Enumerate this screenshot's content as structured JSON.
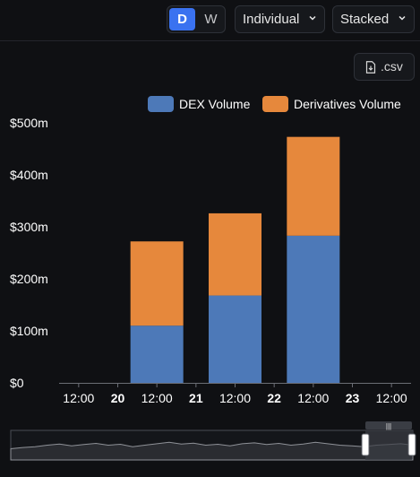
{
  "controls": {
    "interval_day": "D",
    "interval_week": "W",
    "mode": "Individual",
    "stacking": "Stacked",
    "csv": ".csv"
  },
  "colors": {
    "dex": "#4d79b8",
    "derivatives": "#e6883c",
    "active_toggle": "#3a72f0",
    "background": "#0f1013"
  },
  "chart_data": {
    "type": "bar",
    "stacked": true,
    "categories": [
      "20",
      "21",
      "22"
    ],
    "series": [
      {
        "name": "DEX Volume",
        "values": [
          110,
          168,
          283
        ]
      },
      {
        "name": "Derivatives Volume",
        "values": [
          162,
          158,
          190
        ]
      }
    ],
    "ylim": [
      0,
      500
    ],
    "y_ticks": [
      0,
      100,
      200,
      300,
      400,
      500
    ],
    "y_tick_labels": [
      "$0",
      "$100m",
      "$200m",
      "$300m",
      "$400m",
      "$500m"
    ],
    "x_tick_labels": [
      "12:00",
      "20",
      "12:00",
      "21",
      "12:00",
      "22",
      "12:00",
      "23",
      "12:00"
    ],
    "x_range": [
      19.25,
      23.75
    ],
    "legend": "top-right",
    "grid": false
  },
  "slider": {
    "handle_grip": "|||",
    "overview": [
      0.62,
      0.58,
      0.55,
      0.5,
      0.46,
      0.52,
      0.48,
      0.44,
      0.5,
      0.47,
      0.55,
      0.5,
      0.45,
      0.4,
      0.46,
      0.43,
      0.5,
      0.47,
      0.52,
      0.45,
      0.42,
      0.48,
      0.44,
      0.5,
      0.46,
      0.4,
      0.45,
      0.5,
      0.52,
      0.55,
      0.5,
      0.48,
      0.45,
      0.5
    ]
  }
}
